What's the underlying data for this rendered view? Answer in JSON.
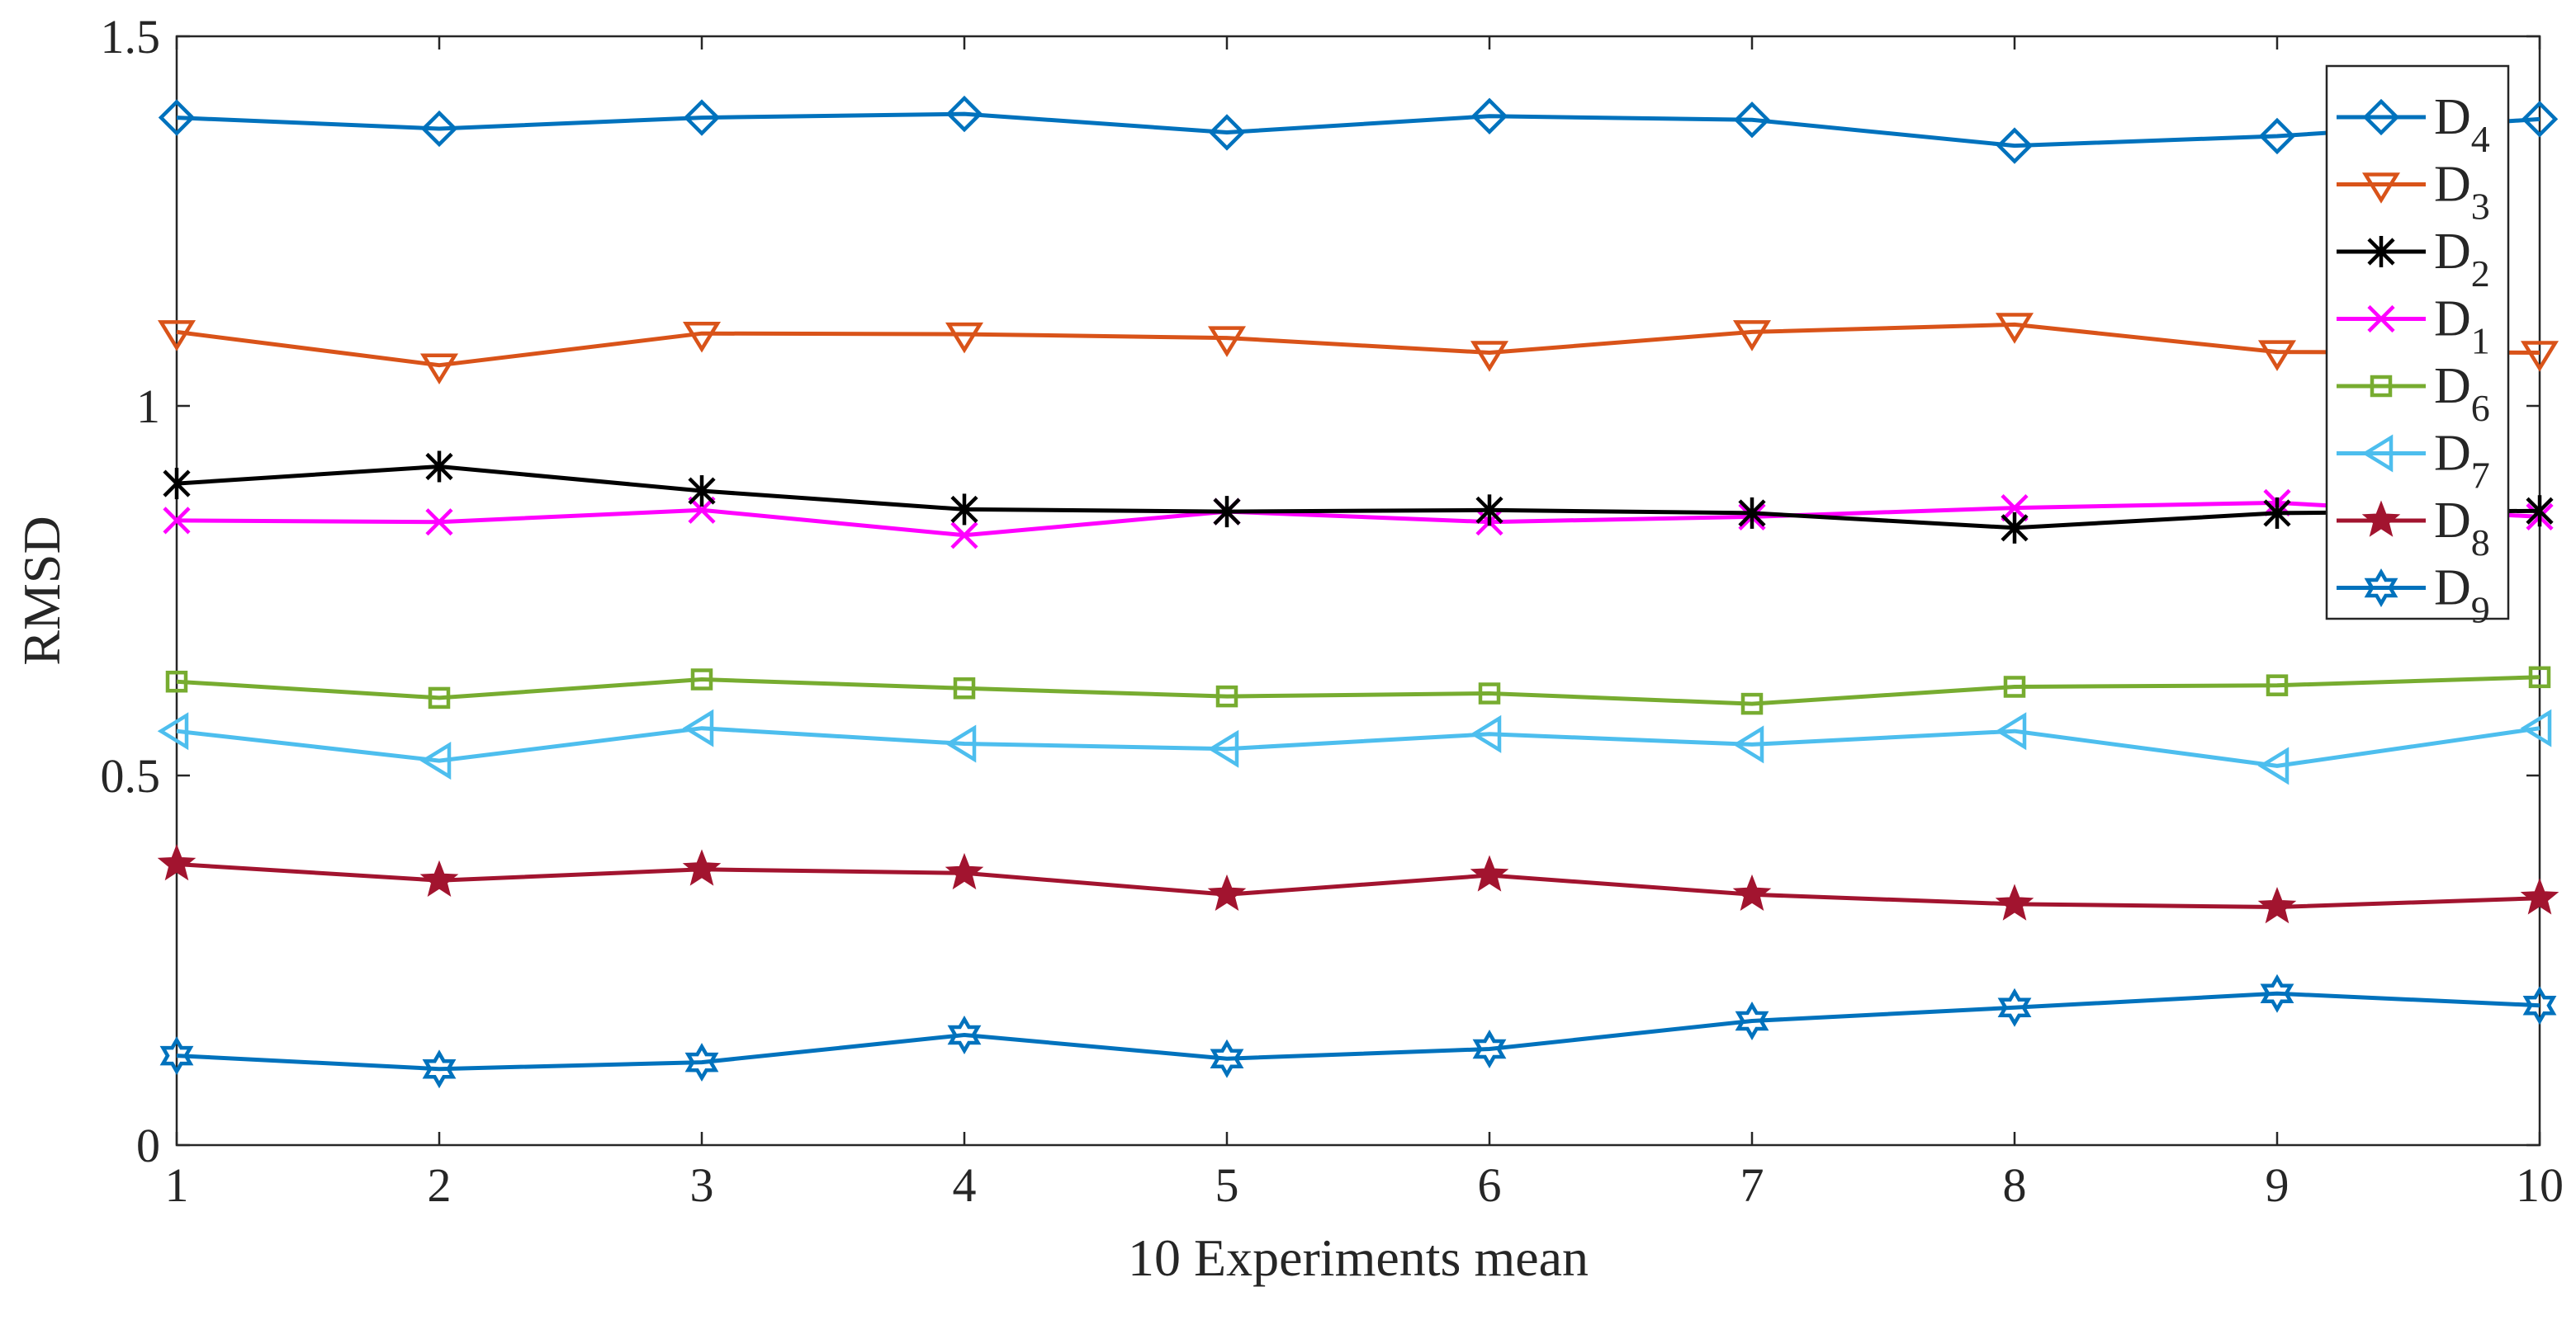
{
  "chart_data": {
    "type": "line",
    "title": "",
    "xlabel": "10 Experiments mean",
    "ylabel": "RMSD",
    "xlim": [
      1,
      10
    ],
    "ylim": [
      0,
      1.5
    ],
    "x": [
      1,
      2,
      3,
      4,
      5,
      6,
      7,
      8,
      9,
      10
    ],
    "xticks": [
      "1",
      "2",
      "3",
      "4",
      "5",
      "6",
      "7",
      "8",
      "9",
      "10"
    ],
    "yticks": [
      {
        "value": 0,
        "label": "0"
      },
      {
        "value": 0.5,
        "label": "0.5"
      },
      {
        "value": 1,
        "label": "1"
      },
      {
        "value": 1.5,
        "label": "1.5"
      }
    ],
    "grid": false,
    "legend_position": "top-right",
    "series": [
      {
        "name": "D4",
        "base": "D",
        "sub": "4",
        "color": "#0072BD",
        "marker": "diamond",
        "values": [
          1.39,
          1.375,
          1.39,
          1.395,
          1.37,
          1.392,
          1.387,
          1.352,
          1.365,
          1.388
        ]
      },
      {
        "name": "D3",
        "base": "D",
        "sub": "3",
        "color": "#D95319",
        "marker": "triangle-down",
        "values": [
          1.1,
          1.055,
          1.098,
          1.097,
          1.092,
          1.072,
          1.1,
          1.11,
          1.073,
          1.072
        ]
      },
      {
        "name": "D2",
        "base": "D",
        "sub": "2",
        "color": "#000000",
        "marker": "asterisk",
        "values": [
          0.895,
          0.918,
          0.885,
          0.86,
          0.857,
          0.859,
          0.855,
          0.835,
          0.855,
          0.858
        ]
      },
      {
        "name": "D1",
        "base": "D",
        "sub": "1",
        "color": "#FF00FF",
        "marker": "x",
        "values": [
          0.845,
          0.843,
          0.859,
          0.825,
          0.857,
          0.843,
          0.85,
          0.862,
          0.869,
          0.85
        ]
      },
      {
        "name": "D6",
        "base": "D",
        "sub": "6",
        "color": "#77AC30",
        "marker": "square",
        "values": [
          0.627,
          0.605,
          0.63,
          0.618,
          0.607,
          0.611,
          0.597,
          0.62,
          0.622,
          0.633
        ]
      },
      {
        "name": "D7",
        "base": "D",
        "sub": "7",
        "color": "#4DBEEE",
        "marker": "triangle-left",
        "values": [
          0.56,
          0.52,
          0.564,
          0.543,
          0.536,
          0.556,
          0.542,
          0.56,
          0.513,
          0.564
        ]
      },
      {
        "name": "D8",
        "base": "D",
        "sub": "8",
        "color": "#A2142F",
        "marker": "pentagram",
        "values": [
          0.38,
          0.358,
          0.373,
          0.368,
          0.339,
          0.365,
          0.339,
          0.326,
          0.322,
          0.334
        ]
      },
      {
        "name": "D9",
        "base": "D",
        "sub": "9",
        "color": "#0072BD",
        "marker": "hexagram",
        "values": [
          0.121,
          0.103,
          0.112,
          0.149,
          0.117,
          0.13,
          0.168,
          0.186,
          0.205,
          0.189
        ]
      }
    ]
  }
}
